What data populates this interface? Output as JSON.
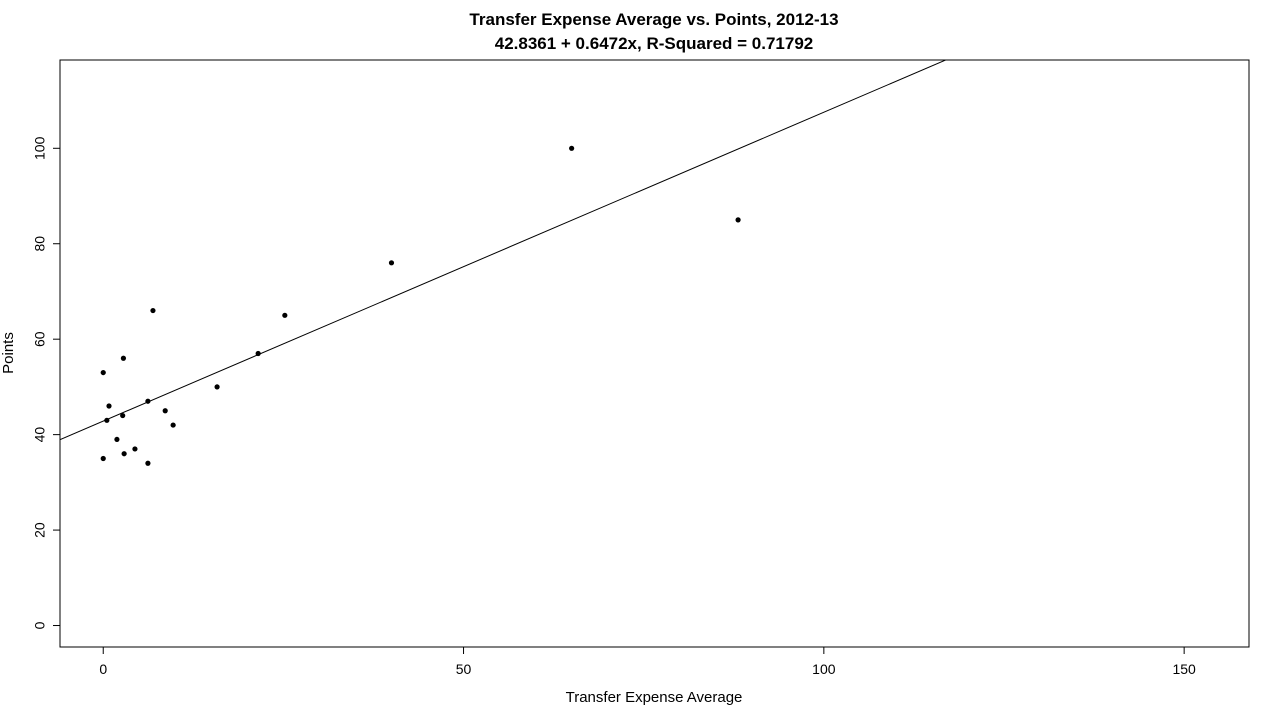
{
  "chart_data": {
    "type": "scatter",
    "title": "Transfer Expense Average vs. Points, 2012-13",
    "subtitle": "42.8361 + 0.6472x, R-Squared = 0.71792",
    "xlabel": "Transfer Expense Average",
    "ylabel": "Points",
    "xlim": [
      -6,
      159
    ],
    "ylim": [
      -4.5,
      118.5
    ],
    "x_ticks": [
      0,
      50,
      100,
      150
    ],
    "y_ticks": [
      0,
      20,
      40,
      60,
      80,
      100
    ],
    "grid": false,
    "points": [
      {
        "x": 0.0,
        "y": 53
      },
      {
        "x": 0.0,
        "y": 35
      },
      {
        "x": 0.5,
        "y": 43
      },
      {
        "x": 0.8,
        "y": 46
      },
      {
        "x": 1.9,
        "y": 39
      },
      {
        "x": 2.8,
        "y": 56
      },
      {
        "x": 2.7,
        "y": 44
      },
      {
        "x": 2.9,
        "y": 36
      },
      {
        "x": 4.4,
        "y": 37
      },
      {
        "x": 6.2,
        "y": 47
      },
      {
        "x": 6.2,
        "y": 34
      },
      {
        "x": 6.9,
        "y": 66
      },
      {
        "x": 8.6,
        "y": 45
      },
      {
        "x": 9.7,
        "y": 42
      },
      {
        "x": 15.8,
        "y": 50
      },
      {
        "x": 21.5,
        "y": 57
      },
      {
        "x": 25.2,
        "y": 65
      },
      {
        "x": 40.0,
        "y": 76
      },
      {
        "x": 65.0,
        "y": 100
      },
      {
        "x": 88.1,
        "y": 85
      }
    ],
    "regression": {
      "intercept": 42.8361,
      "slope": 0.6472
    }
  }
}
